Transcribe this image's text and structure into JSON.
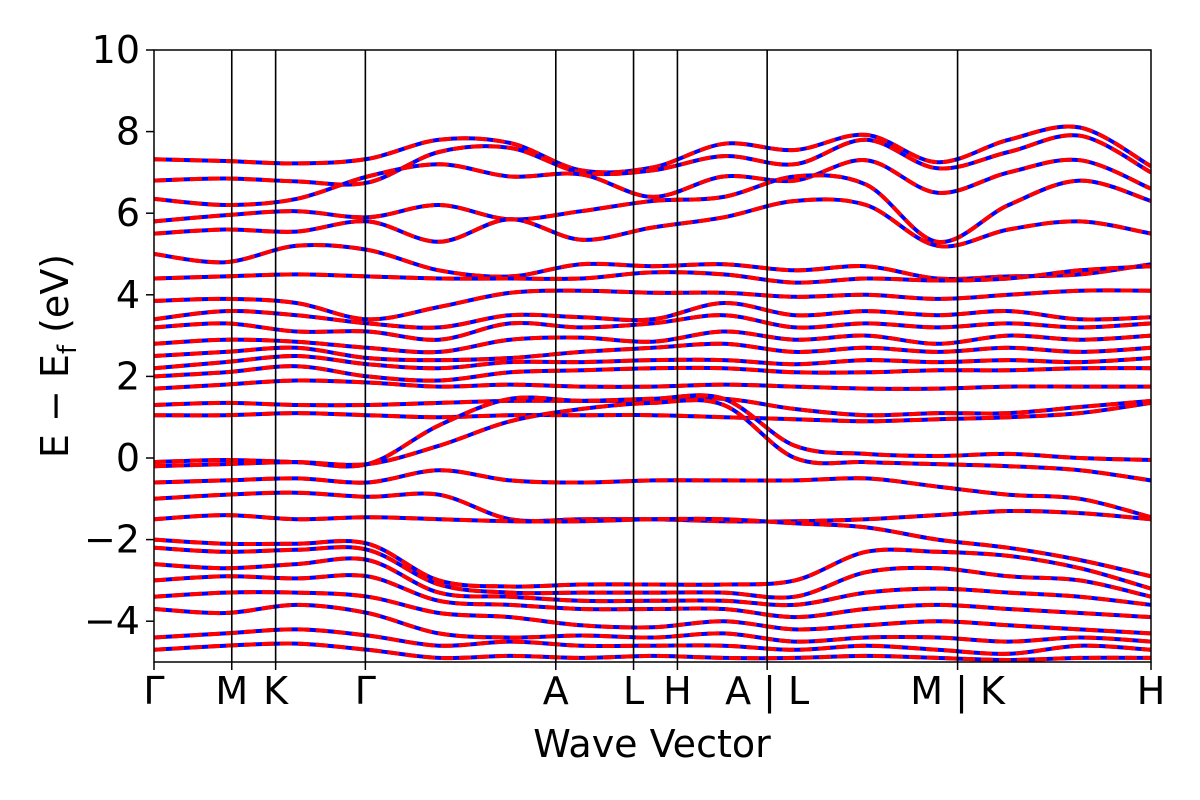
{
  "chart_data": {
    "type": "line",
    "title": "",
    "xlabel": "Wave Vector",
    "ylabel": {
      "main": "E − E",
      "sub": "f",
      "unit": " (eV)"
    },
    "ylim": [
      -5,
      10
    ],
    "yticks": [
      {
        "value": 10,
        "label": "10"
      },
      {
        "value": 8,
        "label": "8"
      },
      {
        "value": 6,
        "label": "6"
      },
      {
        "value": 4,
        "label": "4"
      },
      {
        "value": 2,
        "label": "2"
      },
      {
        "value": 0,
        "label": "0"
      },
      {
        "value": -2,
        "label": "−2"
      },
      {
        "value": -4,
        "label": "−4"
      }
    ],
    "kpath_ticks": [
      {
        "k": 0.0,
        "label": "Γ"
      },
      {
        "k": 0.078,
        "label": "M"
      },
      {
        "k": 0.122,
        "label": "K"
      },
      {
        "k": 0.212,
        "label": "Γ"
      },
      {
        "k": 0.403,
        "label": "A"
      },
      {
        "k": 0.481,
        "label": "L"
      },
      {
        "k": 0.525,
        "label": "H"
      },
      {
        "k": 0.615,
        "label": "A | L"
      },
      {
        "k": 0.806,
        "label": "M | K"
      },
      {
        "k": 1.0,
        "label": "H"
      }
    ],
    "legend": "none",
    "grid": false,
    "colors": {
      "spin_up": "#ff0000",
      "spin_down": "#0000ff"
    },
    "series": [
      {
        "values": [
          7.32,
          7.28,
          7.22,
          7.33,
          7.8,
          7.72,
          7.05,
          7.12,
          7.7,
          7.55,
          7.92,
          7.25,
          7.8,
          8.1,
          7.15
        ]
      },
      {
        "values": [
          6.8,
          6.85,
          6.78,
          6.75,
          7.5,
          7.6,
          7.0,
          7.05,
          7.4,
          7.2,
          7.8,
          7.1,
          7.5,
          7.9,
          7.0
        ]
      },
      {
        "values": [
          6.35,
          6.2,
          6.35,
          6.9,
          7.2,
          6.9,
          6.95,
          6.4,
          6.9,
          6.8,
          7.3,
          6.5,
          7.0,
          7.3,
          6.6
        ]
      },
      {
        "values": [
          5.8,
          5.95,
          6.05,
          5.9,
          6.2,
          5.85,
          6.05,
          6.3,
          6.4,
          6.9,
          6.7,
          5.3,
          6.2,
          6.8,
          6.3
        ]
      },
      {
        "values": [
          5.5,
          5.6,
          5.55,
          5.8,
          5.3,
          5.85,
          5.35,
          5.65,
          5.9,
          6.3,
          6.2,
          5.2,
          5.6,
          5.8,
          5.5
        ]
      },
      {
        "values": [
          5.0,
          4.8,
          5.2,
          5.1,
          4.6,
          4.45,
          4.75,
          4.7,
          4.75,
          4.6,
          4.7,
          4.4,
          4.45,
          4.5,
          4.75
        ]
      },
      {
        "values": [
          4.4,
          4.45,
          4.5,
          4.45,
          4.4,
          4.4,
          4.4,
          4.55,
          4.5,
          4.3,
          4.4,
          4.35,
          4.4,
          4.6,
          4.7
        ]
      },
      {
        "values": [
          3.85,
          3.9,
          3.8,
          3.4,
          3.7,
          4.05,
          4.1,
          4.05,
          4.05,
          3.95,
          4.0,
          3.9,
          4.0,
          4.1,
          4.1
        ]
      },
      {
        "values": [
          3.4,
          3.6,
          3.5,
          3.3,
          3.2,
          3.5,
          3.45,
          3.4,
          3.8,
          3.5,
          3.6,
          3.5,
          3.6,
          3.4,
          3.45
        ]
      },
      {
        "values": [
          3.2,
          3.3,
          3.1,
          3.1,
          2.9,
          3.3,
          3.2,
          3.3,
          3.5,
          3.2,
          3.3,
          3.2,
          3.3,
          3.2,
          3.3
        ]
      },
      {
        "values": [
          2.8,
          2.9,
          2.85,
          2.7,
          2.6,
          2.9,
          2.95,
          2.85,
          3.1,
          2.9,
          3.0,
          2.8,
          3.0,
          2.9,
          3.0
        ]
      },
      {
        "values": [
          2.5,
          2.6,
          2.7,
          2.45,
          2.4,
          2.45,
          2.6,
          2.7,
          2.8,
          2.6,
          2.7,
          2.6,
          2.7,
          2.6,
          2.7
        ]
      },
      {
        "values": [
          2.2,
          2.35,
          2.5,
          2.3,
          2.2,
          2.35,
          2.35,
          2.4,
          2.4,
          2.3,
          2.4,
          2.35,
          2.4,
          2.35,
          2.45
        ]
      },
      {
        "values": [
          2.0,
          2.1,
          2.25,
          2.0,
          1.9,
          2.1,
          2.15,
          2.2,
          2.2,
          2.1,
          2.1,
          2.15,
          2.15,
          2.2,
          2.2
        ]
      },
      {
        "values": [
          1.7,
          1.8,
          1.9,
          1.85,
          1.75,
          1.8,
          1.75,
          1.75,
          1.8,
          1.75,
          1.7,
          1.7,
          1.75,
          1.75,
          1.75
        ]
      },
      {
        "values": [
          1.3,
          1.35,
          1.3,
          1.3,
          1.35,
          1.4,
          1.4,
          1.4,
          1.45,
          1.2,
          1.05,
          1.1,
          1.1,
          1.25,
          1.4
        ]
      },
      {
        "values": [
          1.05,
          1.05,
          1.1,
          1.05,
          1.0,
          1.05,
          1.05,
          1.05,
          1.0,
          0.95,
          0.9,
          0.95,
          1.0,
          1.1,
          1.35
        ]
      },
      {
        "values": [
          -0.1,
          -0.05,
          -0.1,
          -0.15,
          0.8,
          1.45,
          1.4,
          1.45,
          1.45,
          0.3,
          0.1,
          0.05,
          0.1,
          0.0,
          -0.05
        ]
      },
      {
        "values": [
          -0.2,
          -0.15,
          -0.1,
          -0.15,
          0.3,
          0.9,
          1.2,
          1.35,
          1.3,
          0.0,
          -0.1,
          -0.15,
          -0.2,
          -0.3,
          -0.55
        ]
      },
      {
        "values": [
          -0.6,
          -0.55,
          -0.5,
          -0.6,
          -0.3,
          -0.55,
          -0.6,
          -0.55,
          -0.55,
          -0.55,
          -0.5,
          -0.7,
          -0.9,
          -1.0,
          -1.45
        ]
      },
      {
        "values": [
          -1.0,
          -0.9,
          -0.85,
          -0.95,
          -0.9,
          -1.5,
          -1.5,
          -1.5,
          -1.55,
          -1.55,
          -1.5,
          -1.4,
          -1.3,
          -1.35,
          -1.5
        ]
      },
      {
        "values": [
          -1.5,
          -1.4,
          -1.5,
          -1.45,
          -1.5,
          -1.55,
          -1.55,
          -1.5,
          -1.5,
          -1.6,
          -1.7,
          -2.0,
          -2.2,
          -2.5,
          -2.9
        ]
      },
      {
        "values": [
          -2.0,
          -2.1,
          -2.1,
          -2.1,
          -3.0,
          -3.15,
          -3.1,
          -3.1,
          -3.1,
          -3.0,
          -2.3,
          -2.3,
          -2.4,
          -2.7,
          -3.2
        ]
      },
      {
        "values": [
          -2.2,
          -2.3,
          -2.25,
          -2.25,
          -3.1,
          -3.3,
          -3.3,
          -3.3,
          -3.3,
          -3.4,
          -2.8,
          -2.7,
          -2.9,
          -3.0,
          -3.4
        ]
      },
      {
        "values": [
          -2.6,
          -2.7,
          -2.6,
          -2.5,
          -3.3,
          -3.4,
          -3.5,
          -3.5,
          -3.5,
          -3.6,
          -3.3,
          -3.2,
          -3.3,
          -3.4,
          -3.6
        ]
      },
      {
        "values": [
          -3.0,
          -2.9,
          -2.95,
          -2.9,
          -3.5,
          -3.6,
          -3.7,
          -3.7,
          -3.7,
          -3.9,
          -3.7,
          -3.6,
          -3.7,
          -3.8,
          -3.9
        ]
      },
      {
        "values": [
          -3.4,
          -3.3,
          -3.3,
          -3.4,
          -3.8,
          -3.9,
          -4.1,
          -4.15,
          -4.0,
          -4.2,
          -4.1,
          -4.0,
          -4.1,
          -4.2,
          -4.3
        ]
      },
      {
        "values": [
          -3.7,
          -3.8,
          -3.6,
          -3.8,
          -4.3,
          -4.4,
          -4.35,
          -4.4,
          -4.3,
          -4.5,
          -4.4,
          -4.4,
          -4.5,
          -4.4,
          -4.5
        ]
      },
      {
        "values": [
          -4.4,
          -4.3,
          -4.2,
          -4.35,
          -4.6,
          -4.5,
          -4.6,
          -4.6,
          -4.6,
          -4.7,
          -4.6,
          -4.7,
          -4.8,
          -4.6,
          -4.7
        ]
      },
      {
        "values": [
          -4.7,
          -4.6,
          -4.55,
          -4.7,
          -4.9,
          -4.85,
          -4.9,
          -4.85,
          -4.9,
          -4.9,
          -4.85,
          -4.9,
          -4.95,
          -4.9,
          -4.9
        ]
      }
    ]
  }
}
